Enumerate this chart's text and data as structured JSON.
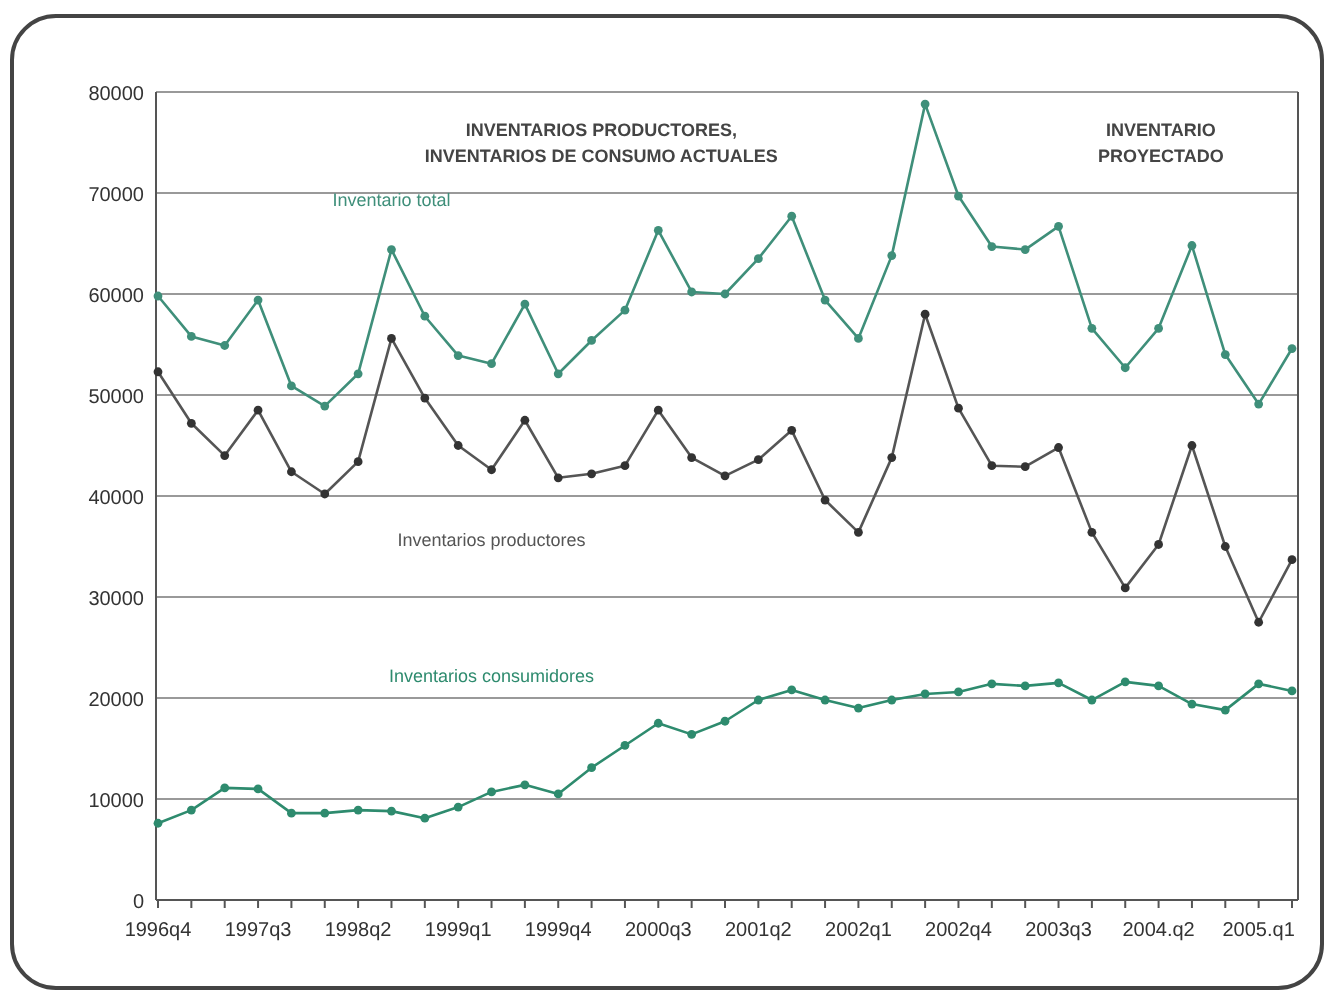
{
  "chart_data": {
    "type": "line",
    "categories": [
      "1996q4",
      null,
      null,
      "1997q3",
      null,
      null,
      "1998q2",
      null,
      null,
      "1999q1",
      null,
      null,
      "1999q4",
      null,
      null,
      "2000q3",
      null,
      null,
      "2001q2",
      null,
      null,
      "2002q1",
      null,
      null,
      "2002q4",
      null,
      null,
      "2003q3",
      null,
      null,
      "2004.q2",
      null,
      null,
      "2005.q1",
      null
    ],
    "series": [
      {
        "name": "Inventario total",
        "color": "#3f8f7a",
        "values": [
          59800,
          55800,
          54900,
          59400,
          50900,
          48900,
          52100,
          64400,
          57800,
          53900,
          53100,
          59000,
          52100,
          55400,
          58400,
          66300,
          60200,
          60000,
          63500,
          67700,
          59400,
          55600,
          63800,
          78800,
          69700,
          64700,
          64400,
          66700,
          56600,
          52700,
          56600,
          64800,
          54000,
          49100,
          54600
        ]
      },
      {
        "name": "Inventarios productores",
        "color": "#555555",
        "values": [
          52300,
          47200,
          44000,
          48500,
          42400,
          40200,
          43400,
          55600,
          49700,
          45000,
          42600,
          47500,
          41800,
          42200,
          43000,
          48500,
          43800,
          42000,
          43600,
          46500,
          39600,
          36400,
          43800,
          58000,
          48700,
          43000,
          42900,
          44800,
          36400,
          30900,
          35200,
          45000,
          35000,
          27500,
          33700
        ]
      },
      {
        "name": "Inventarios consumidores",
        "color": "#2e8b6e",
        "values": [
          7600,
          8900,
          11100,
          11000,
          8600,
          8600,
          8900,
          8800,
          8100,
          9200,
          10700,
          11400,
          10500,
          13100,
          15300,
          17500,
          16400,
          17700,
          19800,
          20800,
          19800,
          19000,
          19800,
          20400,
          20600,
          21400,
          21200,
          21500,
          19800,
          21600,
          21200,
          19400,
          18800,
          21400,
          20700
        ]
      }
    ],
    "ylim": [
      0,
      80000
    ],
    "yticks": [
      0,
      10000,
      20000,
      30000,
      40000,
      50000,
      60000,
      70000,
      80000
    ],
    "grid": "y",
    "marker": "circle",
    "line_style": "solid",
    "annotations": [
      "INVENTARIOS PRODUCTORES,\nINVENTARIOS DE CONSUMO ACTUALES",
      "INVENTARIO\nPROYECTADO"
    ]
  }
}
